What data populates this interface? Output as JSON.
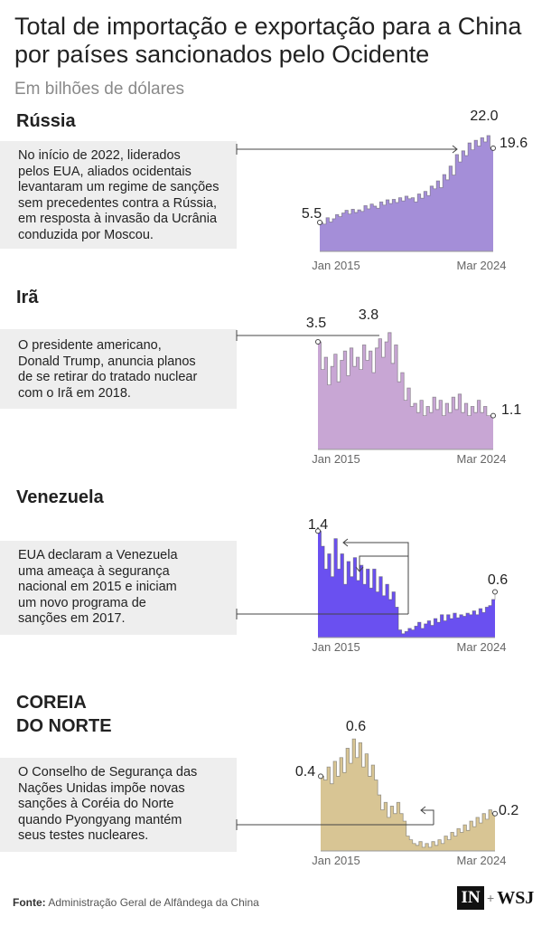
{
  "header": {
    "title": "Total de importação e exportação para a China por países sancionados pelo Ocidente",
    "subtitle": "Em bilhões de dólares"
  },
  "sections": [
    {
      "name": "Rússia",
      "note": [
        "No início de 2022, liderados",
        "pelos EUA, aliados ocidentais",
        "levantaram um regime de sanções",
        "sem precedentes contra a Rússia,",
        "em resposta à invasão da Ucrânia",
        "conduzida por Moscou."
      ]
    },
    {
      "name": "Irã",
      "note": [
        "O presidente americano,",
        "Donald Trump, anuncia planos",
        "de se retirar do tratado nuclear",
        "com o Irã em 2018."
      ]
    },
    {
      "name": "Venezuela",
      "note": [
        "EUA declaram a Venezuela",
        "uma ameaça à segurança",
        "nacional em 2015 e iniciam",
        "um novo programa de",
        "sanções em 2017."
      ]
    },
    {
      "name": [
        "COREIA",
        "DO NORTE"
      ],
      "note": [
        "O Conselho de Segurança das",
        "Nações Unidas impõe novas",
        "sanções à Coréia do Norte",
        "quando Pyongyang mantém",
        "seus testes nucleares."
      ]
    }
  ],
  "source": {
    "label": "Fonte:",
    "text": "Administração Geral de Alfândega da China"
  },
  "logo": {
    "in": "IN",
    "plus": "+",
    "wsj": "WSJ"
  },
  "chart_data": [
    {
      "type": "area",
      "title": "Rússia",
      "x_start": "Jan 2015",
      "x_end": "Mar 2024",
      "x_tick_labels": [
        "Jan 2015",
        "Mar 2024"
      ],
      "color": "#a48ed8",
      "annotations": [
        {
          "label": "5.5",
          "value": 5.5
        },
        {
          "label": "22.0",
          "value": 22.0
        },
        {
          "label": "19.6",
          "value": 19.6
        }
      ],
      "ylim": [
        0,
        22.5
      ],
      "points": [
        [
          0,
          5.5
        ],
        [
          2,
          5.2
        ],
        [
          4,
          6.4
        ],
        [
          6,
          5.6
        ],
        [
          8,
          6.2
        ],
        [
          10,
          7.0
        ],
        [
          12,
          6.6
        ],
        [
          14,
          7.3
        ],
        [
          16,
          7.8
        ],
        [
          18,
          7.1
        ],
        [
          20,
          8.0
        ],
        [
          22,
          7.4
        ],
        [
          24,
          7.9
        ],
        [
          26,
          7.6
        ],
        [
          28,
          8.7
        ],
        [
          30,
          8.1
        ],
        [
          32,
          9.0
        ],
        [
          34,
          8.6
        ],
        [
          36,
          8.2
        ],
        [
          38,
          9.4
        ],
        [
          40,
          8.8
        ],
        [
          42,
          9.8
        ],
        [
          44,
          9.1
        ],
        [
          46,
          9.9
        ],
        [
          48,
          9.3
        ],
        [
          50,
          10.2
        ],
        [
          52,
          9.6
        ],
        [
          54,
          10.5
        ],
        [
          56,
          10.0
        ],
        [
          58,
          10.2
        ],
        [
          60,
          9.4
        ],
        [
          62,
          10.9
        ],
        [
          64,
          10.1
        ],
        [
          66,
          11.4
        ],
        [
          68,
          10.6
        ],
        [
          70,
          12.4
        ],
        [
          72,
          11.9
        ],
        [
          74,
          13.4
        ],
        [
          76,
          12.1
        ],
        [
          78,
          14.6
        ],
        [
          80,
          13.6
        ],
        [
          82,
          16.2
        ],
        [
          84,
          14.5
        ],
        [
          86,
          18.4
        ],
        [
          88,
          17.0
        ],
        [
          90,
          19.1
        ],
        [
          92,
          18.2
        ],
        [
          94,
          20.6
        ],
        [
          96,
          19.3
        ],
        [
          98,
          21.1
        ],
        [
          100,
          20.0
        ],
        [
          102,
          21.6
        ],
        [
          104,
          20.8
        ],
        [
          106,
          22.0
        ],
        [
          108,
          19.6
        ],
        [
          110,
          19.6
        ]
      ]
    },
    {
      "type": "area",
      "title": "Irã",
      "x_start": "Jan 2015",
      "x_end": "Mar 2024",
      "x_tick_labels": [
        "Jan 2015",
        "Mar 2024"
      ],
      "color": "#c8a6d4",
      "annotations": [
        {
          "label": "3.5",
          "value": 3.5
        },
        {
          "label": "3.8",
          "value": 3.8
        },
        {
          "label": "1.1",
          "value": 1.1
        }
      ],
      "ylim": [
        0,
        4.0
      ],
      "points": [
        [
          0,
          3.5
        ],
        [
          2,
          2.6
        ],
        [
          4,
          3.0
        ],
        [
          6,
          2.1
        ],
        [
          8,
          2.7
        ],
        [
          10,
          3.1
        ],
        [
          12,
          2.2
        ],
        [
          14,
          2.9
        ],
        [
          16,
          3.2
        ],
        [
          18,
          2.4
        ],
        [
          20,
          3.3
        ],
        [
          22,
          2.7
        ],
        [
          24,
          3.0
        ],
        [
          26,
          2.6
        ],
        [
          28,
          3.4
        ],
        [
          30,
          2.9
        ],
        [
          32,
          3.2
        ],
        [
          34,
          2.5
        ],
        [
          36,
          3.3
        ],
        [
          38,
          3.6
        ],
        [
          40,
          3.0
        ],
        [
          42,
          3.5
        ],
        [
          44,
          3.8
        ],
        [
          46,
          2.8
        ],
        [
          48,
          3.4
        ],
        [
          50,
          2.2
        ],
        [
          52,
          2.5
        ],
        [
          54,
          1.6
        ],
        [
          56,
          2.0
        ],
        [
          58,
          1.4
        ],
        [
          60,
          1.5
        ],
        [
          62,
          1.2
        ],
        [
          64,
          1.6
        ],
        [
          66,
          1.1
        ],
        [
          68,
          1.4
        ],
        [
          70,
          1.2
        ],
        [
          72,
          1.7
        ],
        [
          74,
          1.3
        ],
        [
          76,
          1.6
        ],
        [
          78,
          1.1
        ],
        [
          80,
          1.5
        ],
        [
          82,
          1.2
        ],
        [
          84,
          1.7
        ],
        [
          86,
          1.3
        ],
        [
          88,
          1.8
        ],
        [
          90,
          1.2
        ],
        [
          92,
          1.5
        ],
        [
          94,
          1.1
        ],
        [
          96,
          1.4
        ],
        [
          98,
          1.2
        ],
        [
          100,
          1.6
        ],
        [
          102,
          1.2
        ],
        [
          104,
          1.4
        ],
        [
          106,
          1.1
        ],
        [
          108,
          1.1
        ],
        [
          110,
          1.1
        ]
      ]
    },
    {
      "type": "area",
      "title": "Venezuela",
      "x_start": "Jan 2015",
      "x_end": "Mar 2024",
      "x_tick_labels": [
        "Jan 2015",
        "Mar 2024"
      ],
      "color": "#6a50f0",
      "annotations": [
        {
          "label": "1.4",
          "value": 1.4
        },
        {
          "label": "0.6",
          "value": 0.6
        }
      ],
      "ylim": [
        0,
        1.45
      ],
      "points": [
        [
          0,
          1.4
        ],
        [
          2,
          1.2
        ],
        [
          4,
          0.9
        ],
        [
          6,
          1.1
        ],
        [
          8,
          0.8
        ],
        [
          10,
          1.3
        ],
        [
          12,
          0.9
        ],
        [
          14,
          1.1
        ],
        [
          16,
          0.7
        ],
        [
          18,
          1.0
        ],
        [
          20,
          0.8
        ],
        [
          22,
          1.05
        ],
        [
          24,
          0.75
        ],
        [
          26,
          0.95
        ],
        [
          28,
          0.7
        ],
        [
          30,
          0.9
        ],
        [
          32,
          0.65
        ],
        [
          34,
          0.9
        ],
        [
          36,
          0.6
        ],
        [
          38,
          0.8
        ],
        [
          40,
          0.55
        ],
        [
          42,
          0.7
        ],
        [
          44,
          0.5
        ],
        [
          46,
          0.6
        ],
        [
          48,
          0.4
        ],
        [
          50,
          0.1
        ],
        [
          52,
          0.05
        ],
        [
          54,
          0.08
        ],
        [
          56,
          0.12
        ],
        [
          58,
          0.1
        ],
        [
          60,
          0.15
        ],
        [
          62,
          0.2
        ],
        [
          64,
          0.12
        ],
        [
          66,
          0.18
        ],
        [
          68,
          0.22
        ],
        [
          70,
          0.16
        ],
        [
          72,
          0.25
        ],
        [
          74,
          0.2
        ],
        [
          76,
          0.3
        ],
        [
          78,
          0.22
        ],
        [
          80,
          0.3
        ],
        [
          82,
          0.25
        ],
        [
          84,
          0.32
        ],
        [
          86,
          0.26
        ],
        [
          88,
          0.3
        ],
        [
          90,
          0.28
        ],
        [
          92,
          0.32
        ],
        [
          94,
          0.3
        ],
        [
          96,
          0.35
        ],
        [
          98,
          0.3
        ],
        [
          100,
          0.38
        ],
        [
          102,
          0.33
        ],
        [
          104,
          0.4
        ],
        [
          106,
          0.42
        ],
        [
          108,
          0.5
        ],
        [
          110,
          0.6
        ]
      ]
    },
    {
      "type": "area",
      "title": "COREIA DO NORTE",
      "x_start": "Jan 2015",
      "x_end": "Mar 2024",
      "x_tick_labels": [
        "Jan 2015",
        "Mar 2024"
      ],
      "color": "#d8c594",
      "annotations": [
        {
          "label": "0.4",
          "value": 0.4
        },
        {
          "label": "0.6",
          "value": 0.6
        },
        {
          "label": "0.2",
          "value": 0.2
        }
      ],
      "ylim": [
        0,
        0.62
      ],
      "points": [
        [
          0,
          0.4
        ],
        [
          2,
          0.38
        ],
        [
          4,
          0.45
        ],
        [
          6,
          0.36
        ],
        [
          8,
          0.48
        ],
        [
          10,
          0.4
        ],
        [
          12,
          0.5
        ],
        [
          14,
          0.42
        ],
        [
          16,
          0.55
        ],
        [
          18,
          0.47
        ],
        [
          20,
          0.6
        ],
        [
          22,
          0.5
        ],
        [
          24,
          0.58
        ],
        [
          26,
          0.45
        ],
        [
          28,
          0.52
        ],
        [
          30,
          0.4
        ],
        [
          32,
          0.46
        ],
        [
          34,
          0.38
        ],
        [
          36,
          0.3
        ],
        [
          38,
          0.22
        ],
        [
          40,
          0.26
        ],
        [
          42,
          0.18
        ],
        [
          44,
          0.24
        ],
        [
          46,
          0.2
        ],
        [
          48,
          0.26
        ],
        [
          50,
          0.2
        ],
        [
          52,
          0.16
        ],
        [
          54,
          0.08
        ],
        [
          56,
          0.06
        ],
        [
          58,
          0.04
        ],
        [
          60,
          0.03
        ],
        [
          62,
          0.05
        ],
        [
          64,
          0.02
        ],
        [
          66,
          0.04
        ],
        [
          68,
          0.02
        ],
        [
          70,
          0.05
        ],
        [
          72,
          0.03
        ],
        [
          74,
          0.06
        ],
        [
          76,
          0.04
        ],
        [
          78,
          0.08
        ],
        [
          80,
          0.06
        ],
        [
          82,
          0.1
        ],
        [
          84,
          0.08
        ],
        [
          86,
          0.12
        ],
        [
          88,
          0.1
        ],
        [
          90,
          0.14
        ],
        [
          92,
          0.11
        ],
        [
          94,
          0.16
        ],
        [
          96,
          0.13
        ],
        [
          98,
          0.18
        ],
        [
          100,
          0.15
        ],
        [
          102,
          0.2
        ],
        [
          104,
          0.17
        ],
        [
          106,
          0.22
        ],
        [
          108,
          0.2
        ],
        [
          110,
          0.2
        ]
      ]
    }
  ]
}
